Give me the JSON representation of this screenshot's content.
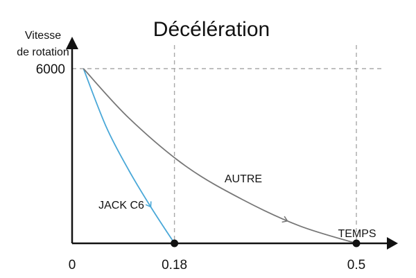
{
  "chart_data": {
    "type": "line",
    "title": "Décélération",
    "ylabel_line1": "Vitesse",
    "ylabel_line2": "de rotation",
    "xlabel": "TEMPS",
    "xlim": [
      0,
      0.55
    ],
    "ylim": [
      0,
      7000
    ],
    "grid": "dashed reference lines at labeled ticks",
    "x_ticks": [
      {
        "value": 0,
        "label": "0"
      },
      {
        "value": 0.18,
        "label": "0.18"
      },
      {
        "value": 0.5,
        "label": "0.5"
      }
    ],
    "y_ticks": [
      {
        "value": 6000,
        "label": "6000"
      }
    ],
    "series": [
      {
        "name": "JACK C6",
        "color": "#4aa8d8",
        "x": [
          0.02,
          0.06,
          0.1,
          0.14,
          0.18
        ],
        "y": [
          6000,
          4000,
          2500,
          1200,
          0
        ]
      },
      {
        "name": "AUTRE",
        "color": "#777777",
        "x": [
          0.02,
          0.1,
          0.2,
          0.3,
          0.4,
          0.5
        ],
        "y": [
          6000,
          4300,
          2650,
          1500,
          600,
          0
        ]
      }
    ],
    "end_markers": [
      {
        "x": 0.18,
        "y": 0
      },
      {
        "x": 0.5,
        "y": 0
      }
    ]
  }
}
